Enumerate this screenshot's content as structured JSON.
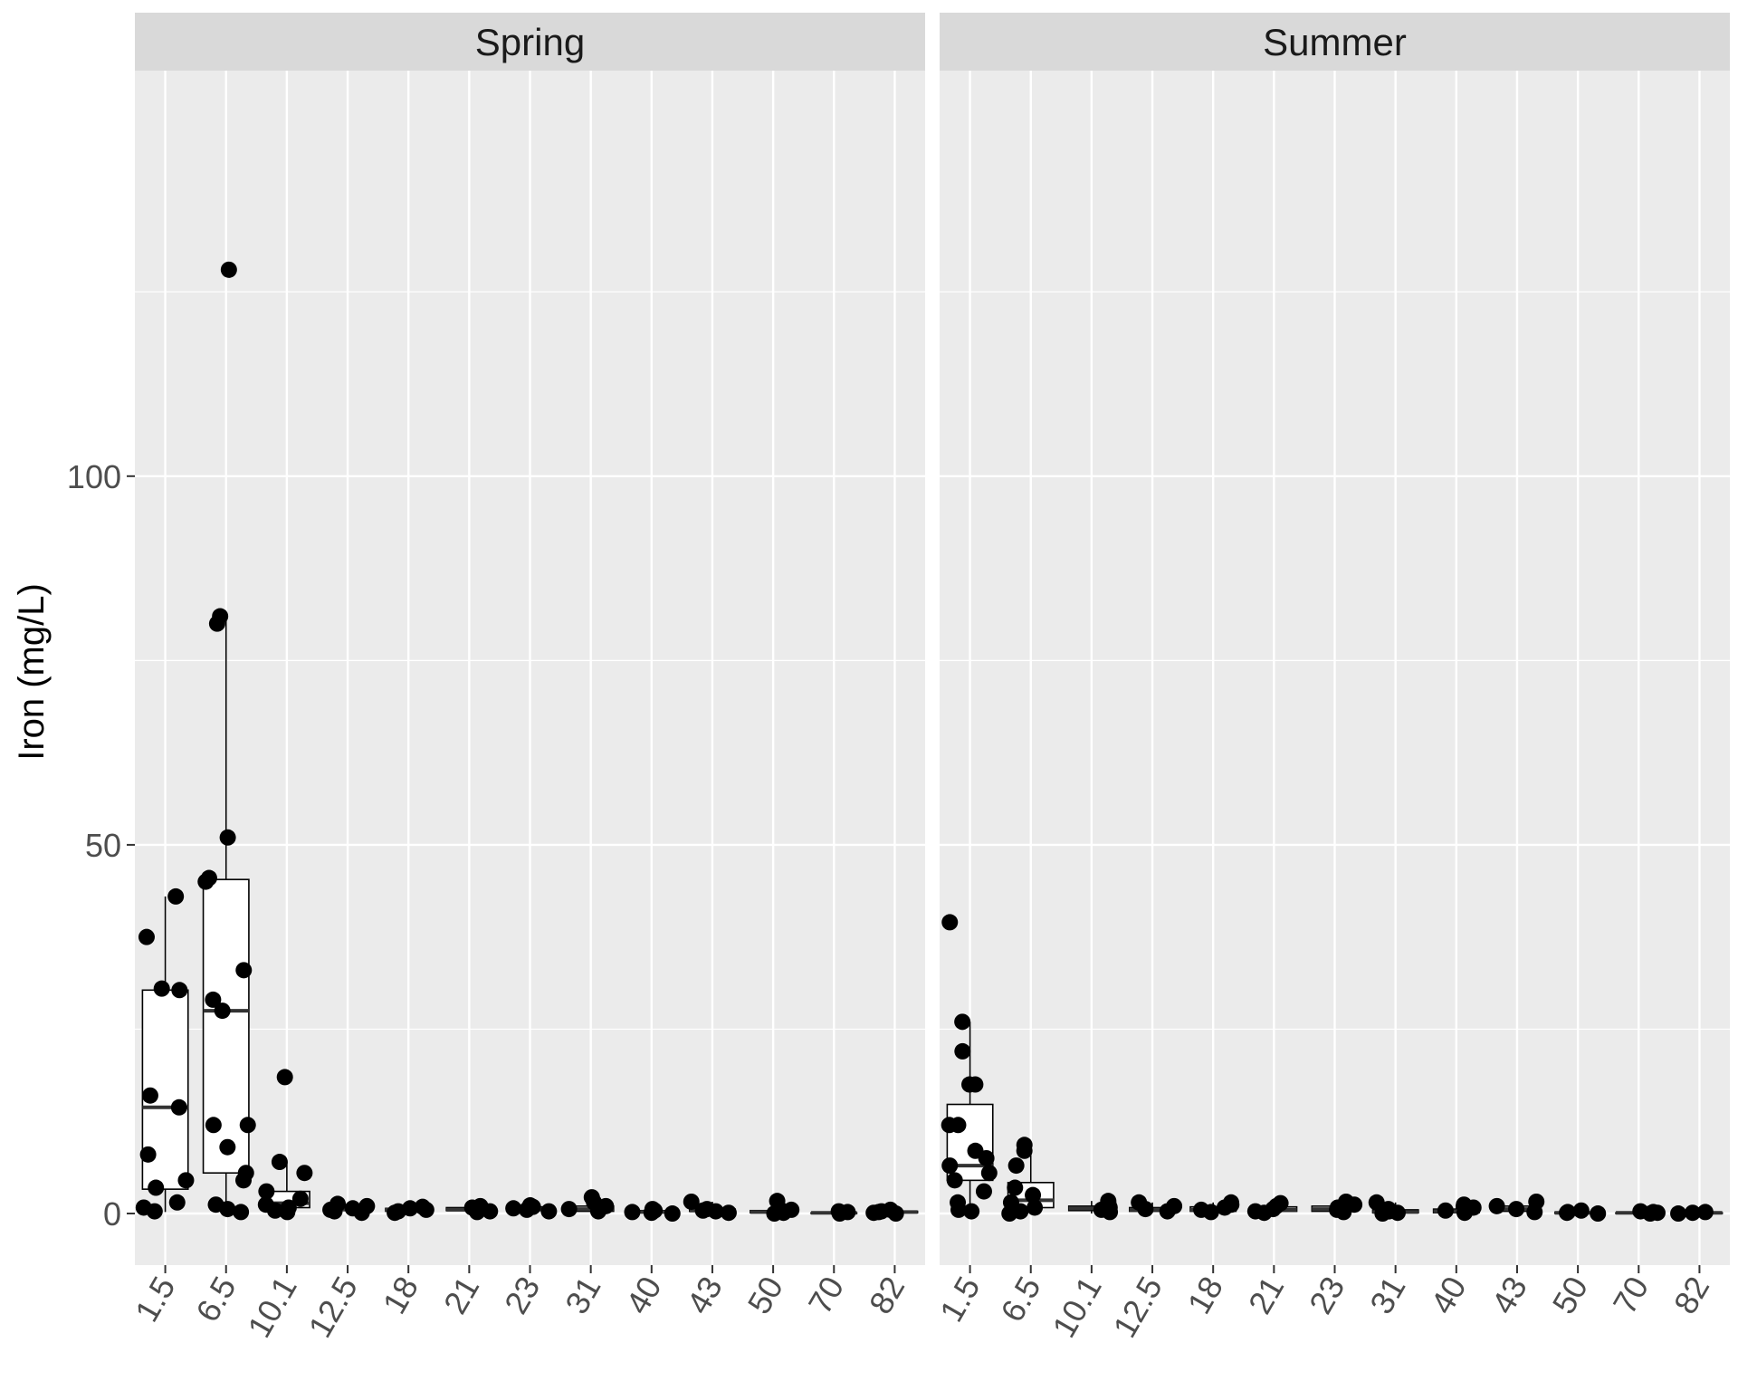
{
  "chart_data": {
    "type": "boxplot",
    "facet_labels": [
      "Spring",
      "Summer"
    ],
    "ylabel": "Iron (mg/L)",
    "xlabel": "",
    "ylim": [
      -7,
      155
    ],
    "y_ticks": [
      0,
      50,
      100
    ],
    "categories": [
      "1.5",
      "6.5",
      "10.1",
      "12.5",
      "18",
      "21",
      "23",
      "31",
      "40",
      "43",
      "50",
      "70",
      "82"
    ],
    "grid": true,
    "panel_background": "#ebebeb",
    "strip_background": "#d9d9d9",
    "point_color": "#000000",
    "facets": [
      {
        "name": "Spring",
        "boxes": [
          {
            "category": "1.5",
            "min": 0.2,
            "q1": 3.3,
            "median": 14.4,
            "q3": 30.3,
            "max": 43
          },
          {
            "category": "6.5",
            "min": 0.5,
            "q1": 5.5,
            "median": 27.5,
            "q3": 45.3,
            "max": 81
          },
          {
            "category": "10.1",
            "min": 0.1,
            "q1": 0.8,
            "median": 1.4,
            "q3": 3.0,
            "max": 7
          },
          {
            "category": "12.5",
            "min": 0.1,
            "q1": 0.4,
            "median": 0.6,
            "q3": 0.9,
            "max": 1.3
          },
          {
            "category": "18",
            "min": 0.1,
            "q1": 0.3,
            "median": 0.5,
            "q3": 0.7,
            "max": 0.9
          },
          {
            "category": "21",
            "min": 0.1,
            "q1": 0.4,
            "median": 0.5,
            "q3": 0.8,
            "max": 1.0
          },
          {
            "category": "23",
            "min": 0.2,
            "q1": 0.4,
            "median": 0.6,
            "q3": 0.9,
            "max": 1.1
          },
          {
            "category": "31",
            "min": 0.1,
            "q1": 0.3,
            "median": 0.6,
            "q3": 1.0,
            "max": 2.2
          },
          {
            "category": "40",
            "min": 0.0,
            "q1": 0.1,
            "median": 0.2,
            "q3": 0.4,
            "max": 0.6
          },
          {
            "category": "43",
            "min": 0.1,
            "q1": 0.3,
            "median": 0.4,
            "q3": 0.6,
            "max": 1.6
          },
          {
            "category": "50",
            "min": 0.0,
            "q1": 0.1,
            "median": 0.2,
            "q3": 0.4,
            "max": 1.7
          },
          {
            "category": "70",
            "min": 0.0,
            "q1": 0.0,
            "median": 0.1,
            "q3": 0.1,
            "max": 0.3
          },
          {
            "category": "82",
            "min": 0.0,
            "q1": 0.1,
            "median": 0.2,
            "q3": 0.3,
            "max": 0.5
          }
        ],
        "points": [
          {
            "category": "1.5",
            "values": [
              43,
              37.5,
              30.5,
              30.3,
              16,
              14.4,
              8,
              4.5,
              3.5,
              1.5,
              0.8,
              0.3
            ]
          },
          {
            "category": "6.5",
            "values": [
              128,
              81,
              80,
              51,
              45.5,
              45,
              33,
              29,
              27.5,
              12,
              12,
              9,
              5.5,
              4.5,
              1.2,
              0.6,
              0.2
            ]
          },
          {
            "category": "10.1",
            "values": [
              18.5,
              7,
              5.5,
              3,
              2,
              1.2,
              0.8,
              0.4,
              0.2
            ]
          },
          {
            "category": "12.5",
            "values": [
              1.3,
              1.0,
              0.7,
              0.5,
              0.3,
              0.1
            ]
          },
          {
            "category": "18",
            "values": [
              0.9,
              0.7,
              0.5,
              0.3,
              0.1
            ]
          },
          {
            "category": "21",
            "values": [
              1.0,
              0.8,
              0.5,
              0.3,
              0.2
            ]
          },
          {
            "category": "23",
            "values": [
              1.1,
              0.9,
              0.7,
              0.5,
              0.3
            ]
          },
          {
            "category": "31",
            "values": [
              2.2,
              1.5,
              1.0,
              0.6,
              0.3
            ]
          },
          {
            "category": "40",
            "values": [
              0.6,
              0.4,
              0.2,
              0.1,
              0.0
            ]
          },
          {
            "category": "43",
            "values": [
              1.6,
              0.6,
              0.4,
              0.3,
              0.1
            ]
          },
          {
            "category": "50",
            "values": [
              1.7,
              0.5,
              0.3,
              0.1,
              0.0
            ]
          },
          {
            "category": "70",
            "values": [
              0.3,
              0.2,
              0.1,
              0.0
            ]
          },
          {
            "category": "82",
            "values": [
              0.5,
              0.3,
              0.2,
              0.1,
              0.0
            ]
          }
        ]
      },
      {
        "name": "Summer",
        "boxes": [
          {
            "category": "1.5",
            "min": 0.3,
            "q1": 4.5,
            "median": 6.5,
            "q3": 14.8,
            "max": 26
          },
          {
            "category": "6.5",
            "min": 0.0,
            "q1": 0.8,
            "median": 1.8,
            "q3": 4.2,
            "max": 9
          },
          {
            "category": "10.1",
            "min": 0.0,
            "q1": 0.4,
            "median": 0.7,
            "q3": 1.0,
            "max": 1.7
          },
          {
            "category": "12.5",
            "min": 0.1,
            "q1": 0.3,
            "median": 0.5,
            "q3": 0.8,
            "max": 1.5
          },
          {
            "category": "18",
            "min": 0.1,
            "q1": 0.3,
            "median": 0.5,
            "q3": 0.9,
            "max": 1.5
          },
          {
            "category": "21",
            "min": 0.1,
            "q1": 0.3,
            "median": 0.5,
            "q3": 0.9,
            "max": 1.4
          },
          {
            "category": "23",
            "min": 0.1,
            "q1": 0.3,
            "median": 0.6,
            "q3": 1.0,
            "max": 1.6
          },
          {
            "category": "31",
            "min": 0.0,
            "q1": 0.1,
            "median": 0.2,
            "q3": 0.5,
            "max": 1.5
          },
          {
            "category": "40",
            "min": 0.0,
            "q1": 0.1,
            "median": 0.3,
            "q3": 0.6,
            "max": 1.2
          },
          {
            "category": "43",
            "min": 0.1,
            "q1": 0.3,
            "median": 0.6,
            "q3": 1.0,
            "max": 1.6
          },
          {
            "category": "50",
            "min": 0.0,
            "q1": 0.0,
            "median": 0.1,
            "q3": 0.2,
            "max": 0.4
          },
          {
            "category": "70",
            "min": 0.0,
            "q1": 0.0,
            "median": 0.1,
            "q3": 0.1,
            "max": 0.3
          },
          {
            "category": "82",
            "min": 0.0,
            "q1": 0.0,
            "median": 0.1,
            "q3": 0.1,
            "max": 0.2
          }
        ],
        "points": [
          {
            "category": "1.5",
            "values": [
              39.5,
              26,
              22,
              17.5,
              17.5,
              12,
              12,
              8.5,
              7.5,
              6.5,
              5.5,
              4.5,
              3,
              1.5,
              0.5,
              0.3
            ]
          },
          {
            "category": "6.5",
            "values": [
              9.3,
              8.5,
              6.5,
              3.5,
              2.5,
              1.5,
              0.8,
              0.3,
              0.0
            ]
          },
          {
            "category": "10.1",
            "values": [
              1.7,
              1.2,
              0.8,
              0.5,
              0.2
            ]
          },
          {
            "category": "12.5",
            "values": [
              1.5,
              1.0,
              0.6,
              0.3
            ]
          },
          {
            "category": "18",
            "values": [
              1.5,
              1.2,
              0.8,
              0.5,
              0.2
            ]
          },
          {
            "category": "21",
            "values": [
              1.4,
              1.0,
              0.6,
              0.3,
              0.1
            ]
          },
          {
            "category": "23",
            "values": [
              1.6,
              1.2,
              0.8,
              0.5,
              0.2
            ]
          },
          {
            "category": "31",
            "values": [
              1.5,
              0.6,
              0.3,
              0.1,
              0.0
            ]
          },
          {
            "category": "40",
            "values": [
              1.2,
              0.8,
              0.4,
              0.1
            ]
          },
          {
            "category": "43",
            "values": [
              1.6,
              1.0,
              0.6,
              0.2
            ]
          },
          {
            "category": "50",
            "values": [
              0.4,
              0.2,
              0.1,
              0.0
            ]
          },
          {
            "category": "70",
            "values": [
              0.3,
              0.2,
              0.1,
              0.0
            ]
          },
          {
            "category": "82",
            "values": [
              0.2,
              0.1,
              0.0
            ]
          }
        ]
      }
    ]
  }
}
